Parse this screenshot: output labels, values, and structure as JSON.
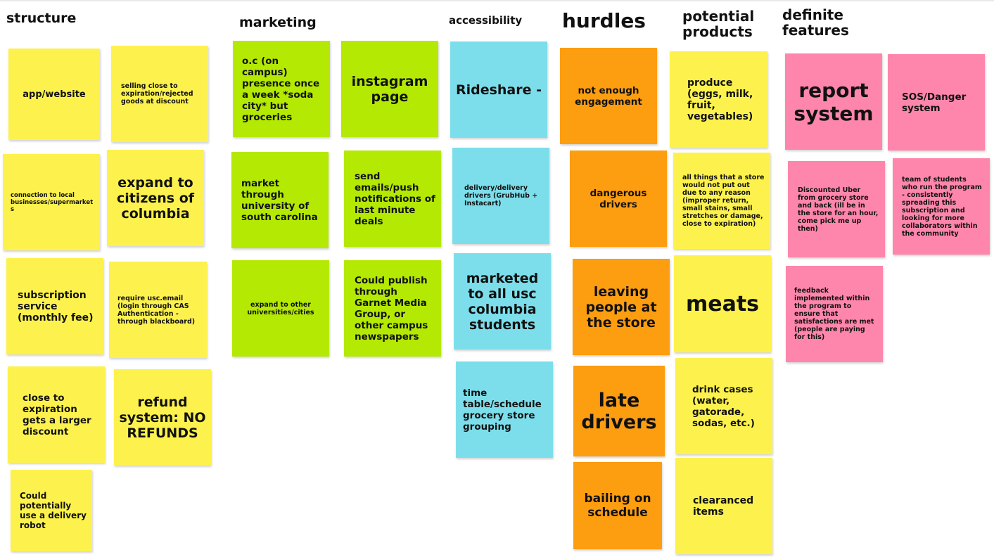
{
  "headers": {
    "structure": "structure",
    "marketing": "marketing",
    "accessibility": "accessibility",
    "hurdles": "hurdles",
    "potential_products": "potential products",
    "definite_features": "definite features"
  },
  "structure": {
    "app_website": "app/website",
    "selling_close": "selling close to expiration/rejected goods at discount",
    "connection_local": "connection to local businesses/supermarkets",
    "expand_citizens": "expand to citizens of columbia",
    "subscription": "subscription service (monthly fee)",
    "require_usc": "require usc.email (login through CAS Authentication - through blackboard)",
    "close_expiration": "close to expiration gets a larger discount",
    "refund": "refund system: NO REFUNDS",
    "delivery_robot": "Could potentially use a delivery robot"
  },
  "marketing": {
    "oc_presence": "o.c (on campus) presence once a week *soda city* but groceries",
    "instagram": "instagram page",
    "market_usc": "market through university of south carolina",
    "emails": "send emails/push notifications of last minute deals",
    "expand_universities": "expand to other universities/cities",
    "garnet_media": "Could publish through Garnet Media Group, or other campus newspapers"
  },
  "accessibility": {
    "rideshare": "Rideshare -",
    "delivery_drivers": "delivery/delivery drivers (GrubHub + Instacart)",
    "marketed_usc": "marketed to all usc columbia students",
    "timetable": "time table/schedule grocery store grouping"
  },
  "hurdles": {
    "engagement": "not enough engagement",
    "dangerous": "dangerous drivers",
    "leaving": "leaving people at the store",
    "late": "late drivers",
    "bailing": "bailing on schedule"
  },
  "products": {
    "produce": "produce (eggs, milk, fruit, vegetables)",
    "all_things": "all things that a store would not put out due to any reason (improper return, small stains, small stretches or damage, close to expiration)",
    "meats": "meats",
    "drink_cases": "drink cases (water, gatorade, sodas, etc.)",
    "clearanced": "clearanced items"
  },
  "features": {
    "report": "report system",
    "sos": "SOS/Danger system",
    "uber": "Discounted Uber from grocery store and back (ill be in the store for an hour, come pick me up then)",
    "team": "team of students who run the program - consistently spreading this subscription and looking for more collaborators within the community",
    "feedback": "feedback implemented within the program to ensure that satisfactions are met (people are paying for this)"
  },
  "colors": {
    "yellow": "#fdf24d",
    "lime": "#b4e903",
    "cyan": "#7ddeeb",
    "orange": "#fd9d10",
    "pink": "#fe86ad"
  }
}
